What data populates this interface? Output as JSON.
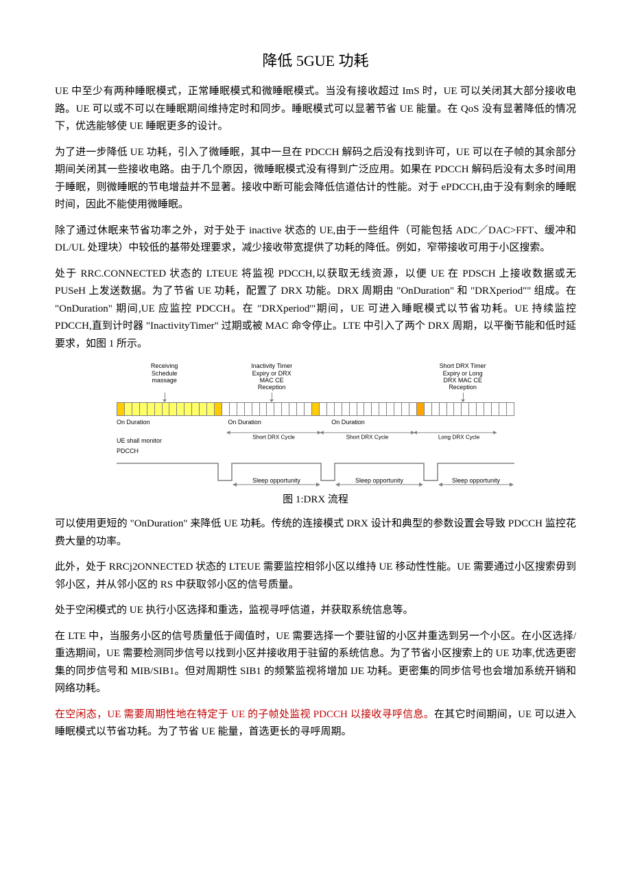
{
  "title": "降低 5GUE 功耗",
  "paragraphs": {
    "p1": "UE 中至少有两种睡眠模式，正常睡眠模式和微睡眠模式。当没有接收超过 ImS 时，UE 可以关闭其大部分接收电路。UE 可以或不可以在睡眠期间维持定时和同步。睡眠模式可以显著节省 UE 能量。在 QoS 没有显著降低的情况下，优选能够使 UE 睡眠更多的设计。",
    "p2": "为了进一步降低 UE 功耗，引入了微睡眠，其中一旦在 PDCCH 解码之后没有找到许可，UE 可以在子帧的其余部分期间关闭其一些接收电路。由于几个原因，微睡眠模式没有得到广泛应用。如果在 PDCCH 解码后没有太多时间用于睡眠，则微睡眠的节电增益并不显著。接收中断可能会降低信道估计的性能。对于 ePDCCH,由于没有剩余的睡眠时间，因此不能使用微睡眠。",
    "p3": "除了通过休眠来节省功率之外，对于处于 inactive 状态的 UE,由于一些组件（可能包括 ADC／DAC>FFT、缓冲和 DL/UL 处理块）中较低的基带处理要求，减少接收带宽提供了功耗的降低。例如，窄带接收可用于小区搜索。",
    "p4": "处于 RRC.CONNECTED 状态的 LTEUE 将监视 PDCCH,以获取无线资源，以便 UE 在 PDSCH 上接收数据或无 PUSeH 上发送数据。为了节省 UE 功耗，配置了 DRX 功能。DRX 周期由 \"OnDuration\" 和 \"DRXperiod\"\" 组成。在 \"OnDuration\" 期间,UE 应监控 PDCCH。在 \"DRXperiod'\"期间，UE 可进入睡眠模式以节省功耗。UE 持续监控 PDCCH,直到计时器 \"InactivityTimer\" 过期或被 MAC 命令停止。LTE 中引入了两个 DRX 周期，以平衡节能和低时延要求，如图 1 所示。",
    "p5": "可以使用更短的 \"OnDuration\" 来降低 UE 功耗。传统的连接模式 DRX 设计和典型的参数设置会导致 PDCCH 监控花费大量的功率。",
    "p6": "此外，处于 RRCj2ONNECTED 状态的 LTEUE 需要监控相邻小区以维持 UE 移动性性能。UE 需要通过小区搜索毋到邻小区，并从邻小区的 RS 中获取邻小区的信号质量。",
    "p7": "处于空闲模式的 UE 执行小区选择和重选，监视寻呼信道，并获取系统信息等。",
    "p8": "在 LTE 中，当服务小区的信号质量低于阈值时，UE 需要选择一个要驻留的小区并重选到另一个小区。在小区选择/重选期间，UE 需要检测同步信号以找到小区并接收用于驻留的系统信息。为了节省小区搜索上的 UE 功率,优选更密集的同步信号和 MIB/SIB1。但对周期性 SIB1 的频繁监视将增加 IJE 功耗。更密集的同步信号也会增加系统开销和网络功耗。",
    "p9a": "在空闲态，UE 需要周期性地在特定于 UE 的子帧处监视 PDCCH 以接收寻呼信息。",
    "p9b": "在其它时间期间，UE 可以进入睡眠模式以节省功耗。为了节省 UE 能量，首选更长的寻呼周期。"
  },
  "figure": {
    "caption": "图 1:DRX 流程",
    "callouts": {
      "c1": "Receiving\nSchedule\nmassage",
      "c2": "Inactivity Timer\nExpiry or DRX\nMAC CE\nReception",
      "c3": "Short DRX Timer\nExpiry or Long\nDRX MAC CE\nReception"
    },
    "labels": {
      "on_duration": "On Duration",
      "ue_monitor": "UE shall monitor\nPDCCH",
      "short_cycle": "Short DRX Cycle",
      "long_cycle": "Long DRX Cycle",
      "sleep": "Sleep opportunity"
    },
    "strip_pattern": "NRRRRRRRRRRRRNOOOOOOOOOOOONOOOOOOOOOOOOOMOOOOOOOOOOOO",
    "colors": {
      "on": "#ffcc00",
      "on2": "#ffa500",
      "rx": "#ffff66",
      "off": "#ffffff",
      "border": "#808080",
      "line": "#808080",
      "text": "#000000"
    },
    "font": {
      "family": "Arial",
      "size_pt": 9
    }
  },
  "colors": {
    "body_text": "#000000",
    "highlight_red": "#c00000",
    "background": "#ffffff"
  },
  "typography": {
    "body_family": "SimSun",
    "body_size_pt": 15,
    "title_size_pt": 22,
    "line_height": 1.7
  }
}
